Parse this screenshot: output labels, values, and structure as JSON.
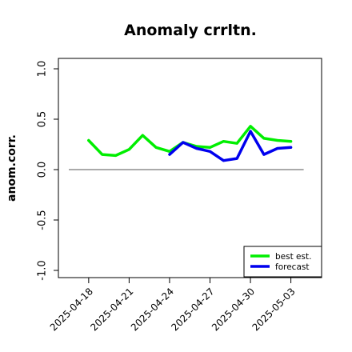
{
  "chart_data": {
    "type": "line",
    "title": "Anomaly crrltn.",
    "xlabel": "",
    "ylabel": "anom.corr.",
    "ylim": [
      -1.0,
      1.0
    ],
    "yticks": [
      -1.0,
      -0.5,
      0.0,
      0.5,
      1.0
    ],
    "ytick_labels": [
      "-1.0",
      "-0.5",
      "0.0",
      "0.5",
      "1.0"
    ],
    "x": [
      "2025-04-17",
      "2025-04-18",
      "2025-04-19",
      "2025-04-20",
      "2025-04-21",
      "2025-04-22",
      "2025-04-23",
      "2025-04-24",
      "2025-04-25",
      "2025-04-26",
      "2025-04-27",
      "2025-04-28",
      "2025-04-29",
      "2025-04-30",
      "2025-05-01",
      "2025-05-02",
      "2025-05-03"
    ],
    "xticks": [
      "2025-04-18",
      "2025-04-21",
      "2025-04-24",
      "2025-04-27",
      "2025-04-30",
      "2025-05-03"
    ],
    "highlight_tick": "2025-04-24",
    "highlight_color": "#228b22",
    "zero_line": true,
    "grid": false,
    "legend_position": "bottom-right",
    "series": [
      {
        "name": "best est.",
        "color": "#00ee00",
        "values": [
          null,
          0.29,
          0.15,
          0.14,
          0.2,
          0.34,
          0.22,
          0.18,
          0.27,
          0.23,
          0.22,
          0.28,
          0.26,
          0.43,
          0.31,
          0.29,
          0.28
        ]
      },
      {
        "name": "forecast",
        "color": "#0000ee",
        "values": [
          null,
          null,
          null,
          null,
          null,
          null,
          null,
          0.15,
          0.27,
          0.21,
          0.18,
          0.09,
          0.11,
          0.38,
          0.15,
          0.21,
          0.22
        ]
      }
    ]
  }
}
